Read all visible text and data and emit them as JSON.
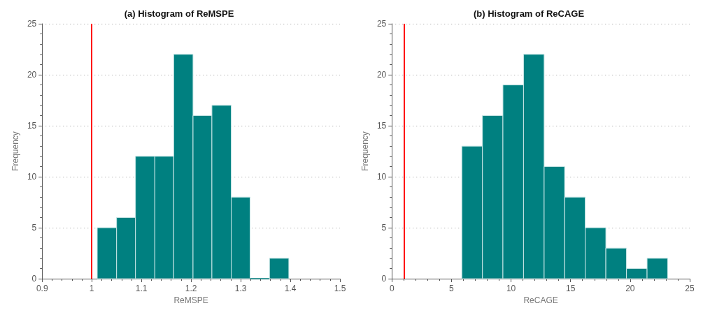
{
  "chart_data": [
    {
      "type": "histogram",
      "title": "(a) Histogram of ReMSPE",
      "xlabel": "ReMSPE",
      "ylabel": "Frequency",
      "bins": [
        1.011,
        1.05,
        1.088,
        1.127,
        1.165,
        1.204,
        1.242,
        1.281,
        1.319,
        1.358,
        1.397
      ],
      "values": [
        5,
        6,
        12,
        12,
        22,
        16,
        17,
        8,
        0,
        2
      ],
      "color": "#008080",
      "xlim": [
        0.9,
        1.5
      ],
      "xticks": [
        0.9,
        1,
        1.1,
        1.2,
        1.3,
        1.4,
        1.5
      ],
      "ylim": [
        0,
        25
      ],
      "yticks": [
        0,
        5,
        10,
        15,
        20,
        25
      ],
      "ref_lines": [
        {
          "axis": "x",
          "value": 1,
          "color": "#ff0000"
        }
      ],
      "grid": "y"
    },
    {
      "type": "histogram",
      "title": "(b) Histogram of ReCAGE",
      "xlabel": "ReCAGE",
      "ylabel": "Frequency",
      "bins": [
        5.87,
        7.6,
        9.32,
        11.05,
        12.78,
        14.5,
        16.23,
        17.96,
        19.69,
        21.42,
        23.15
      ],
      "values": [
        13,
        16,
        19,
        22,
        11,
        8,
        5,
        3,
        1,
        2
      ],
      "color": "#008080",
      "xlim": [
        0,
        25
      ],
      "xticks": [
        0,
        5,
        10,
        15,
        20,
        25
      ],
      "ylim": [
        0,
        25
      ],
      "yticks": [
        0,
        5,
        10,
        15,
        20,
        25
      ],
      "ref_lines": [
        {
          "axis": "x",
          "value": 1,
          "color": "#ff0000"
        }
      ],
      "grid": "y"
    }
  ]
}
